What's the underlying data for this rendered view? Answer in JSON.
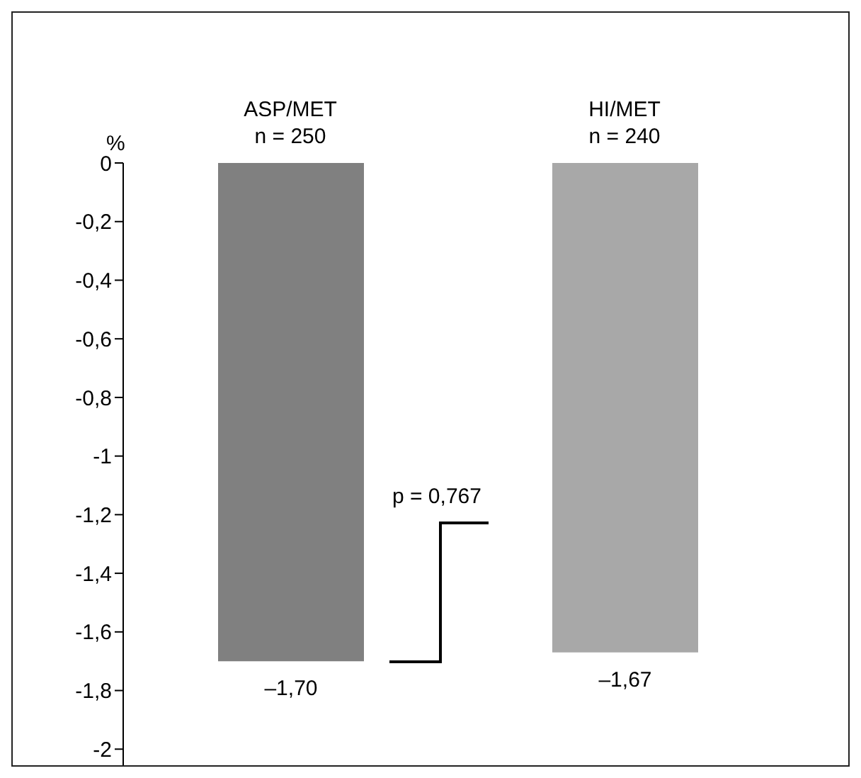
{
  "chart_data": {
    "type": "bar",
    "ylabel": "%",
    "categories": [
      "ASP/MET\nn = 250",
      "HI/MET\nn = 240"
    ],
    "values": [
      -1.7,
      -1.67
    ],
    "colors": [
      "#808080",
      "#a8a8a8"
    ],
    "value_labels": [
      "–1,70",
      "–1,67"
    ],
    "ylim": [
      -2.2,
      0
    ],
    "yticks": [
      {
        "value": 0,
        "label": "0"
      },
      {
        "value": -0.2,
        "label": "-0,2"
      },
      {
        "value": -0.4,
        "label": "-0,4"
      },
      {
        "value": -0.6,
        "label": "-0,6"
      },
      {
        "value": -0.8,
        "label": "-0,8"
      },
      {
        "value": -1,
        "label": "-1"
      },
      {
        "value": -1.2,
        "label": "-1,2"
      },
      {
        "value": -1.4,
        "label": "-1,4"
      },
      {
        "value": -1.6,
        "label": "-1,6"
      },
      {
        "value": -1.8,
        "label": "-1,8"
      },
      {
        "value": -2,
        "label": "-2"
      }
    ],
    "annotations": [
      "p = 0,767"
    ],
    "grid": false,
    "legend": false
  }
}
